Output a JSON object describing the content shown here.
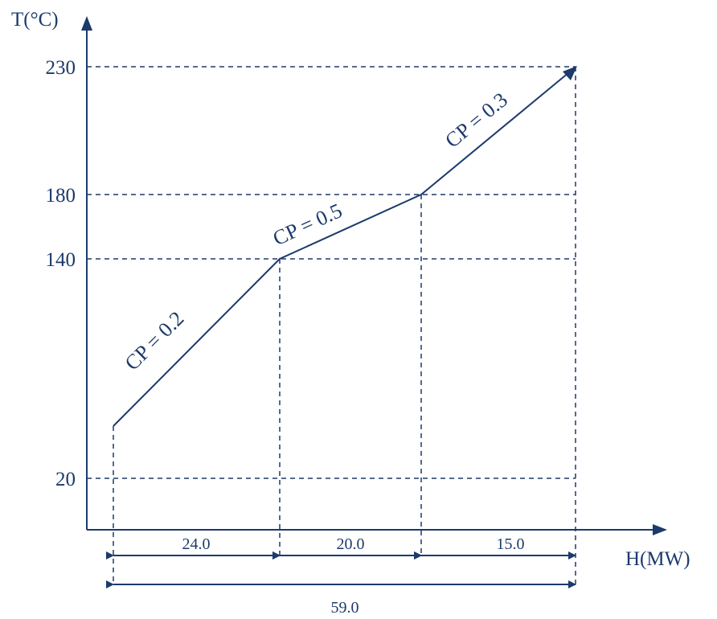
{
  "axes": {
    "y_label": "T(°C)",
    "x_label": "H(MW)",
    "y_ticks": [
      "230",
      "180",
      "140",
      "20"
    ]
  },
  "segments": [
    {
      "label": "CP = 0.2",
      "cp": 0.2
    },
    {
      "label": "CP = 0.5",
      "cp": 0.5
    },
    {
      "label": "CP = 0.3",
      "cp": 0.3
    }
  ],
  "intervals": {
    "widths": [
      "24.0",
      "20.0",
      "15.0"
    ],
    "total": "59.0"
  },
  "colors": {
    "ink": "#1c3a6b"
  }
}
